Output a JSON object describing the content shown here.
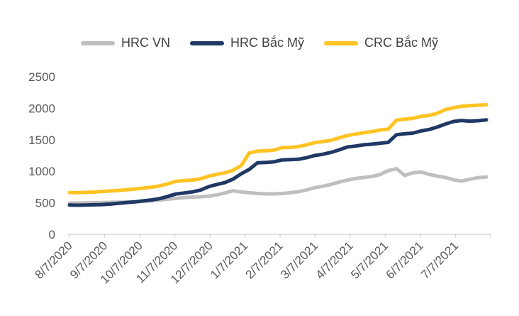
{
  "chart_data": {
    "type": "line",
    "title": "",
    "legend_position": "top",
    "grid": false,
    "ylim": [
      0,
      2500
    ],
    "yticks": [
      0,
      500,
      1000,
      1500,
      2000,
      2500
    ],
    "x_tick_labels": [
      "8/7/2020",
      "9/7/2020",
      "10/7/2020",
      "11/7/2020",
      "12/7/2020",
      "1/7/2021",
      "2/7/2021",
      "3/7/2021",
      "4/7/2021",
      "5/7/2021",
      "6/7/2021",
      "7/7/2021"
    ],
    "axis_color": "#D9D9D9",
    "text_color": "#595959",
    "series": [
      {
        "name": "HRC VN",
        "color": "#BFBFBF",
        "values": [
          495,
          497,
          500,
          502,
          505,
          507,
          510,
          512,
          516,
          522,
          532,
          545,
          557,
          570,
          582,
          590,
          596,
          605,
          625,
          655,
          690,
          672,
          660,
          648,
          642,
          642,
          648,
          660,
          675,
          705,
          740,
          762,
          792,
          830,
          862,
          885,
          902,
          918,
          948,
          1010,
          1042,
          935,
          975,
          990,
          950,
          925,
          900,
          865,
          845,
          875,
          900,
          910
        ]
      },
      {
        "name": "HRC Bắc Mỹ",
        "color": "#1F3864",
        "values": [
          465,
          462,
          464,
          468,
          472,
          480,
          492,
          505,
          515,
          530,
          545,
          565,
          600,
          640,
          655,
          672,
          700,
          755,
          790,
          820,
          875,
          960,
          1030,
          1135,
          1140,
          1150,
          1180,
          1185,
          1190,
          1215,
          1250,
          1270,
          1300,
          1340,
          1385,
          1400,
          1420,
          1430,
          1445,
          1458,
          1580,
          1595,
          1605,
          1640,
          1662,
          1702,
          1750,
          1790,
          1805,
          1795,
          1802,
          1815
        ]
      },
      {
        "name": "CRC Bắc Mỹ",
        "color": "#FFC324",
        "values": [
          663,
          660,
          665,
          670,
          680,
          688,
          696,
          706,
          718,
          732,
          748,
          768,
          800,
          840,
          852,
          860,
          880,
          920,
          950,
          975,
          1015,
          1090,
          1290,
          1320,
          1325,
          1335,
          1375,
          1378,
          1392,
          1420,
          1455,
          1472,
          1492,
          1530,
          1568,
          1590,
          1612,
          1630,
          1655,
          1668,
          1812,
          1825,
          1840,
          1870,
          1885,
          1920,
          1980,
          2008,
          2032,
          2042,
          2048,
          2055
        ]
      }
    ]
  }
}
